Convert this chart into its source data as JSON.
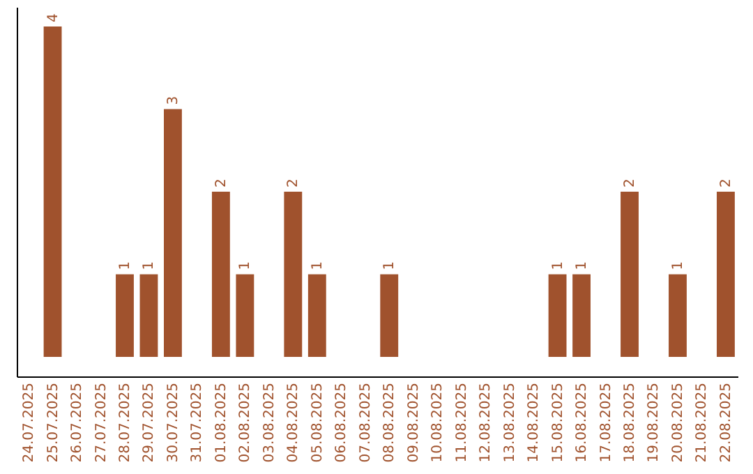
{
  "chart_data": {
    "type": "bar",
    "categories": [
      "24.07.2025",
      "25.07.2025",
      "26.07.2025",
      "27.07.2025",
      "28.07.2025",
      "29.07.2025",
      "30.07.2025",
      "31.07.2025",
      "01.08.2025",
      "02.08.2025",
      "03.08.2025",
      "04.08.2025",
      "05.08.2025",
      "06.08.2025",
      "07.08.2025",
      "08.08.2025",
      "09.08.2025",
      "10.08.2025",
      "11.08.2025",
      "12.08.2025",
      "13.08.2025",
      "14.08.2025",
      "15.08.2025",
      "16.08.2025",
      "17.08.2025",
      "18.08.2025",
      "19.08.2025",
      "20.08.2025",
      "21.08.2025",
      "22.08.2025"
    ],
    "values": [
      0,
      4,
      0,
      0,
      1,
      1,
      3,
      0,
      2,
      1,
      0,
      2,
      1,
      0,
      0,
      1,
      0,
      0,
      0,
      0,
      0,
      0,
      1,
      1,
      0,
      2,
      0,
      1,
      0,
      2
    ],
    "value_labels": [
      null,
      "4",
      null,
      null,
      "1",
      "1",
      "3",
      null,
      "2",
      "1",
      null,
      "2",
      "1",
      null,
      null,
      "1",
      null,
      null,
      null,
      null,
      null,
      null,
      "1",
      "1",
      null,
      "2",
      null,
      "1",
      null,
      "2"
    ],
    "color": "#a0522d",
    "tick_labels": "x",
    "grid": false
  }
}
